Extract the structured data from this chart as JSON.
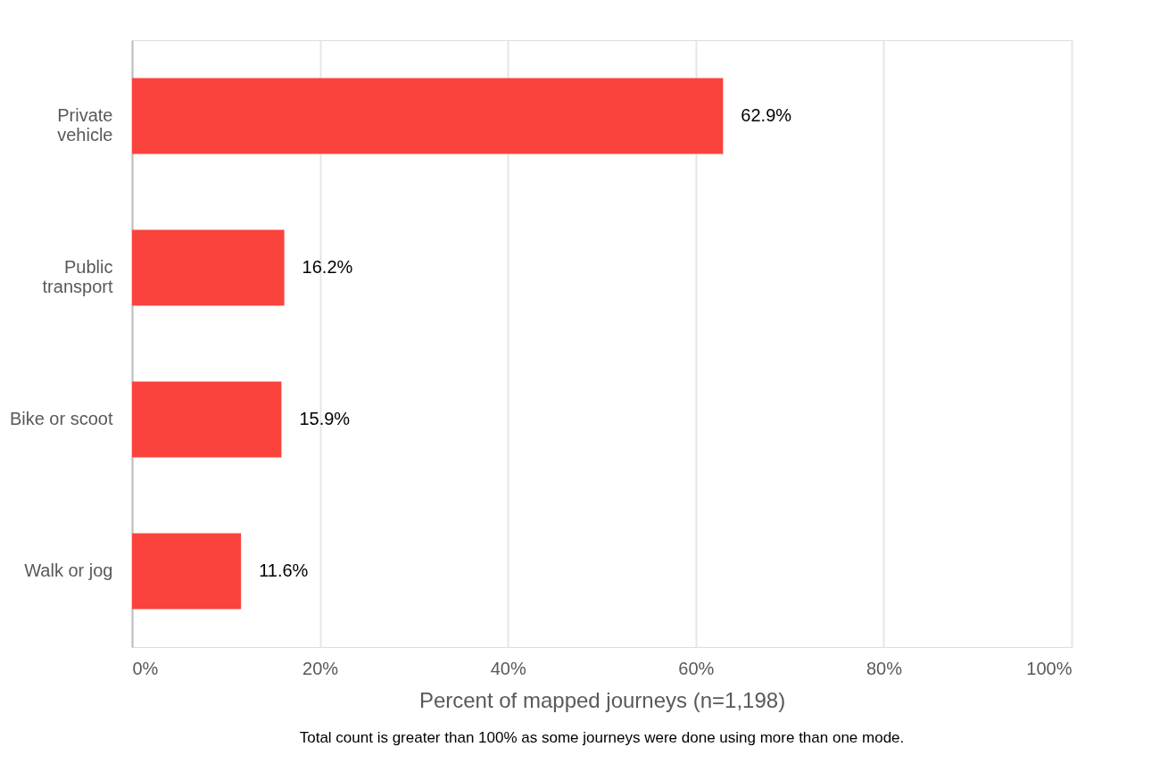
{
  "chart_data": {
    "type": "bar",
    "orientation": "horizontal",
    "categories": [
      "Private vehicle",
      "Public transport",
      "Bike or scoot",
      "Walk or jog"
    ],
    "values": [
      62.9,
      16.2,
      15.9,
      11.6
    ],
    "value_labels": [
      "62.9%",
      "16.2%",
      "15.9%",
      "11.6%"
    ],
    "color": "#fa433c",
    "xlim": [
      0,
      100
    ],
    "xticks": [
      {
        "value": 0,
        "label": "0%"
      },
      {
        "value": 20,
        "label": "20%"
      },
      {
        "value": 40,
        "label": "40%"
      },
      {
        "value": 60,
        "label": "60%"
      },
      {
        "value": 80,
        "label": "80%"
      },
      {
        "value": 100,
        "label": "100%"
      }
    ],
    "xlabel": "Percent of mapped journeys (n=1,198)",
    "grid": "x",
    "annotations": [
      "Total count is greater than 100% as some journeys were done using more than one mode."
    ]
  }
}
